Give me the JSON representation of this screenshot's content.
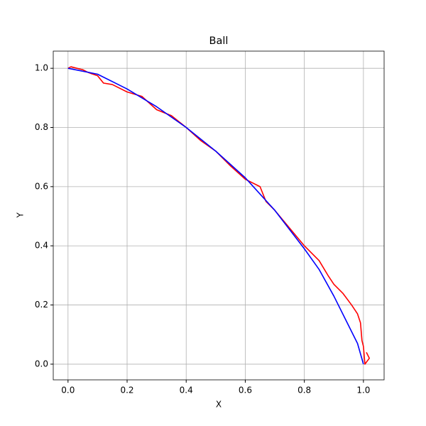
{
  "chart_data": {
    "type": "line",
    "title": "Ball",
    "xlabel": "X",
    "ylabel": "Y",
    "xlim": [
      -0.05,
      1.07
    ],
    "ylim": [
      -0.053,
      1.058
    ],
    "xticks": [
      {
        "value": 0,
        "label": "0.0"
      },
      {
        "value": 0.2,
        "label": "0.2"
      },
      {
        "value": 0.4,
        "label": "0.4"
      },
      {
        "value": 0.6,
        "label": "0.6"
      },
      {
        "value": 0.8,
        "label": "0.8"
      },
      {
        "value": 1,
        "label": "1.0"
      }
    ],
    "yticks": [
      {
        "value": 0,
        "label": "0.0"
      },
      {
        "value": 0.2,
        "label": "0.2"
      },
      {
        "value": 0.4,
        "label": "0.4"
      },
      {
        "value": 0.6,
        "label": "0.6"
      },
      {
        "value": 0.8,
        "label": "0.8"
      },
      {
        "value": 1,
        "label": "1.0"
      }
    ],
    "grid": true,
    "series": [
      {
        "color": "#ff0000",
        "x": [
          0,
          0.01,
          0.03,
          0.05,
          0.07,
          0.1,
          0.12,
          0.15,
          0.2,
          0.25,
          0.3,
          0.35,
          0.4,
          0.45,
          0.5,
          0.55,
          0.6,
          0.65,
          0.67,
          0.7,
          0.75,
          0.8,
          0.85,
          0.88,
          0.9,
          0.93,
          0.96,
          0.98,
          0.99,
          0.995,
          1.0,
          1.005,
          1.02,
          1.01
        ],
        "values": [
          1.0,
          1.005,
          1.0,
          0.995,
          0.985,
          0.975,
          0.95,
          0.945,
          0.92,
          0.905,
          0.86,
          0.84,
          0.8,
          0.755,
          0.72,
          0.67,
          0.625,
          0.6,
          0.55,
          0.52,
          0.46,
          0.4,
          0.35,
          0.3,
          0.27,
          0.24,
          0.2,
          0.17,
          0.14,
          0.08,
          0.06,
          0.0,
          0.02,
          0.04
        ]
      },
      {
        "color": "#0000ff",
        "x": [
          0,
          0.1,
          0.2,
          0.3,
          0.4,
          0.5,
          0.6,
          0.7,
          0.8,
          0.85,
          0.9,
          0.95,
          0.98,
          1.0
        ],
        "values": [
          1.0,
          0.98,
          0.93,
          0.87,
          0.8,
          0.72,
          0.63,
          0.52,
          0.39,
          0.32,
          0.23,
          0.13,
          0.07,
          0.0
        ]
      }
    ]
  }
}
